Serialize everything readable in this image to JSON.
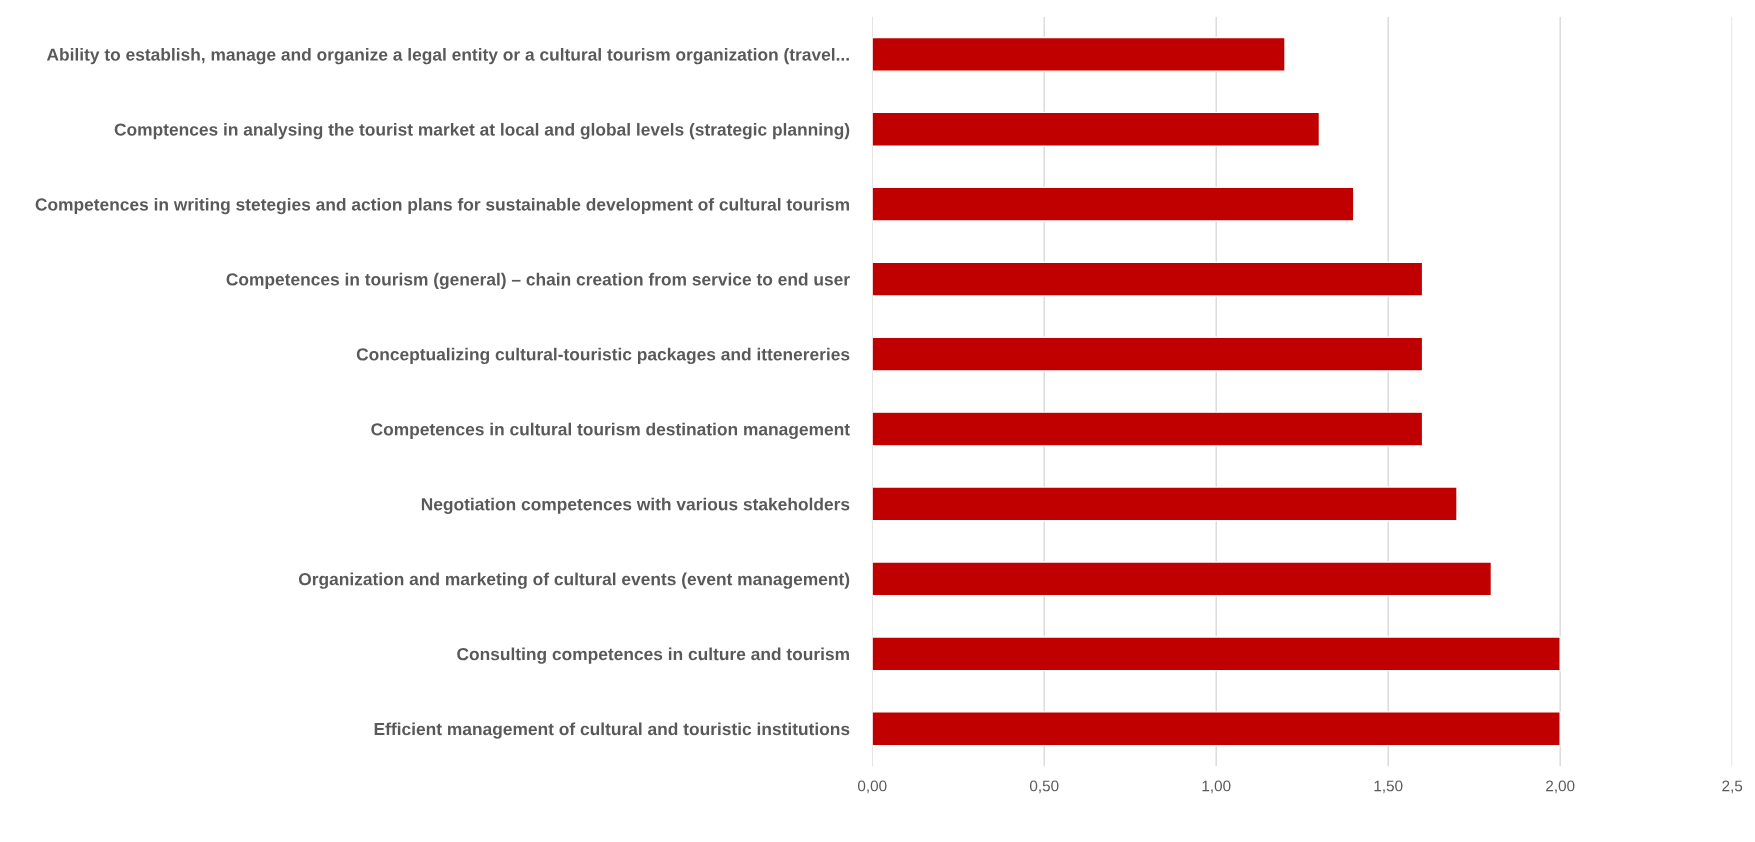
{
  "chart_data": {
    "type": "bar",
    "orientation": "horizontal",
    "categories": [
      "Ability to establish, manage and organize a legal entity or a cultural tourism organization (travel...",
      "Comptences in analysing the tourist market at local and global levels (strategic planning)",
      "Competences in writing stetegies and action plans for sustainable development of cultural tourism",
      "Competences in tourism (general) – chain creation from service to end user",
      "Conceptualizing cultural-touristic packages and ittenereries",
      "Competences in cultural tourism destination management",
      "Negotiation competences with various stakeholders",
      "Organization and marketing of cultural events (event management)",
      "Consulting competences in culture and tourism",
      "Efficient management of cultural and touristic institutions"
    ],
    "values": [
      1.2,
      1.3,
      1.4,
      1.6,
      1.6,
      1.6,
      1.7,
      1.8,
      2.0,
      2.0
    ],
    "color": "#c00000",
    "xlim": [
      0,
      2.5
    ],
    "xticks": [
      {
        "value": 0,
        "label": "0,00"
      },
      {
        "value": 0.5,
        "label": "0,50"
      },
      {
        "value": 1.0,
        "label": "1,00"
      },
      {
        "value": 1.5,
        "label": "1,50"
      },
      {
        "value": 2.0,
        "label": "2,00"
      },
      {
        "value": 2.5,
        "label": "2,5"
      }
    ],
    "grid": "x"
  }
}
